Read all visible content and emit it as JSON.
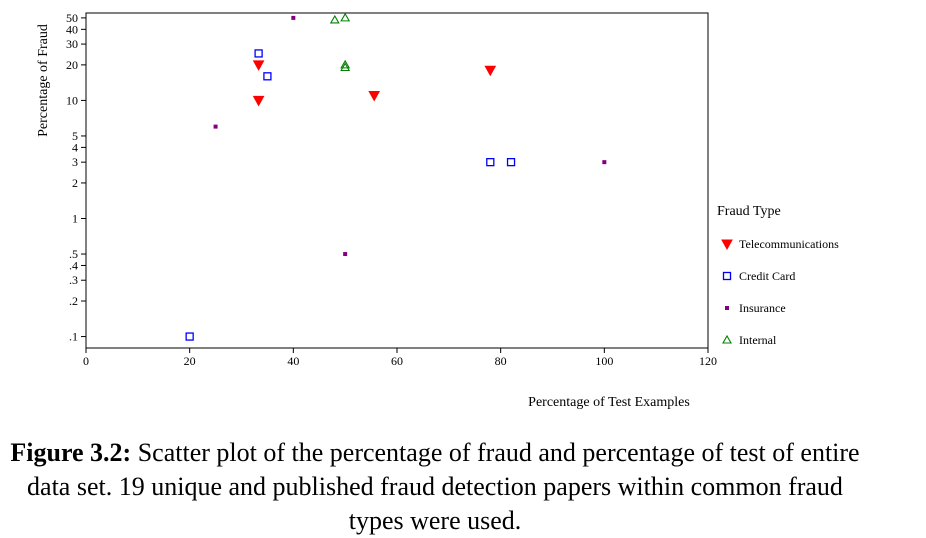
{
  "chart_data": {
    "type": "scatter",
    "xlabel": "Percentage of Test Examples",
    "ylabel": "Percentage of Fraud",
    "xlim": [
      0,
      120
    ],
    "ylim": [
      0.08,
      55
    ],
    "yscale": "log",
    "xticks": [
      0,
      20,
      40,
      60,
      80,
      100,
      120
    ],
    "yticks": [
      {
        "v": 0.1,
        "label": ".1"
      },
      {
        "v": 0.2,
        "label": ".2"
      },
      {
        "v": 0.3,
        "label": ".3"
      },
      {
        "v": 0.4,
        "label": ".4"
      },
      {
        "v": 0.5,
        "label": ".5"
      },
      {
        "v": 1,
        "label": "1"
      },
      {
        "v": 2,
        "label": "2"
      },
      {
        "v": 3,
        "label": "3"
      },
      {
        "v": 4,
        "label": "4"
      },
      {
        "v": 5,
        "label": "5"
      },
      {
        "v": 10,
        "label": "10"
      },
      {
        "v": 20,
        "label": "20"
      },
      {
        "v": 30,
        "label": "30"
      },
      {
        "v": 40,
        "label": "40"
      },
      {
        "v": 50,
        "label": "50"
      }
    ],
    "legend_title": "Fraud Type",
    "legend_position": "right",
    "series": [
      {
        "name": "Telecommunications",
        "marker": "triangle-down-filled",
        "color": "#ff0000",
        "points": [
          [
            33.3,
            20
          ],
          [
            33.3,
            10
          ],
          [
            55.6,
            11
          ],
          [
            78,
            18
          ]
        ]
      },
      {
        "name": "Credit Card",
        "marker": "square-open",
        "color": "#0000ff",
        "points": [
          [
            20,
            0.1
          ],
          [
            33.3,
            25
          ],
          [
            35,
            16
          ],
          [
            78,
            3
          ],
          [
            82,
            3
          ]
        ]
      },
      {
        "name": "Insurance",
        "marker": "square-small-filled",
        "color": "#800080",
        "points": [
          [
            25,
            6
          ],
          [
            40,
            50
          ],
          [
            50,
            0.5
          ],
          [
            100,
            3
          ]
        ]
      },
      {
        "name": "Internal",
        "marker": "triangle-up-open",
        "color": "#008000",
        "points": [
          [
            48,
            48
          ],
          [
            50,
            50
          ],
          [
            50,
            19
          ],
          [
            50,
            20
          ]
        ]
      }
    ]
  },
  "caption": {
    "label": "Figure 3.2:",
    "text": " Scatter plot of the percentage of fraud and percentage of test of entire data set. 19 unique and published fraud detection papers within common fraud types were used."
  }
}
